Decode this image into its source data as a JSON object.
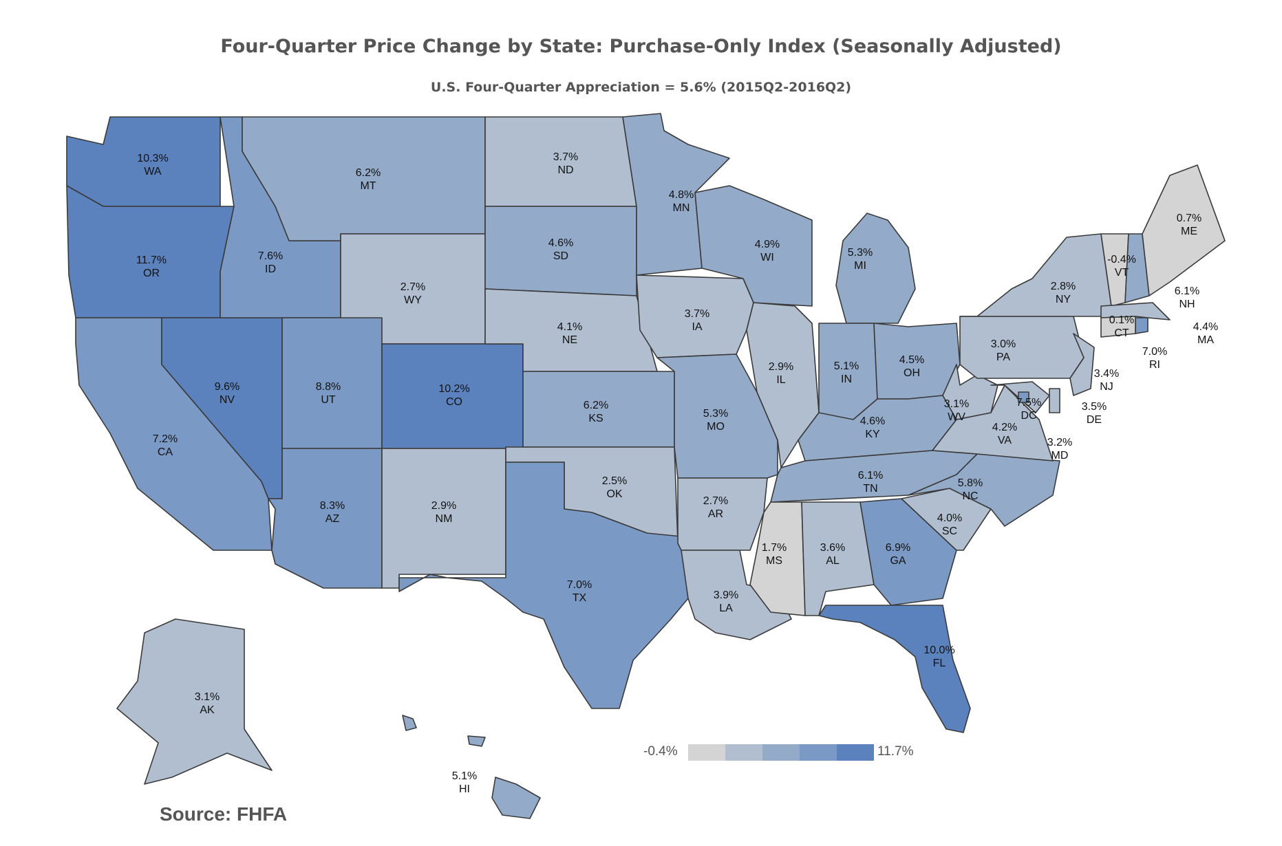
{
  "title": "Four-Quarter Price Change by State: Purchase-Only Index (Seasonally Adjusted)",
  "subtitle": "U.S. Four-Quarter Appreciation = 5.6% (2015Q2-2016Q2)",
  "source": "Source:  FHFA",
  "colors": {
    "bin1": "#d4d4d4",
    "bin2": "#b0bed0",
    "bin3": "#93aac9",
    "bin4": "#7a99c4",
    "bin5": "#5b82bc",
    "bin6": "#3e68ad",
    "border": "#3a3a3a"
  },
  "legend": {
    "min": "-0.4%",
    "max": "11.7%",
    "swatches": [
      "#d4d4d4",
      "#b0bed0",
      "#93aac9",
      "#7a99c4",
      "#5b82bc"
    ]
  },
  "chart_data": {
    "type": "choropleth",
    "range": [
      -0.4,
      11.7
    ],
    "states": [
      {
        "abbr": "WA",
        "label": "10.3%",
        "value": 10.3,
        "bin": "bin5"
      },
      {
        "abbr": "OR",
        "label": "11.7%",
        "value": 11.7,
        "bin": "bin5"
      },
      {
        "abbr": "CA",
        "label": "7.2%",
        "value": 7.2,
        "bin": "bin4"
      },
      {
        "abbr": "NV",
        "label": "9.6%",
        "value": 9.6,
        "bin": "bin5"
      },
      {
        "abbr": "ID",
        "label": "7.6%",
        "value": 7.6,
        "bin": "bin4"
      },
      {
        "abbr": "MT",
        "label": "6.2%",
        "value": 6.2,
        "bin": "bin3"
      },
      {
        "abbr": "WY",
        "label": "2.7%",
        "value": 2.7,
        "bin": "bin2"
      },
      {
        "abbr": "UT",
        "label": "8.8%",
        "value": 8.8,
        "bin": "bin4"
      },
      {
        "abbr": "AZ",
        "label": "8.3%",
        "value": 8.3,
        "bin": "bin4"
      },
      {
        "abbr": "CO",
        "label": "10.2%",
        "value": 10.2,
        "bin": "bin5"
      },
      {
        "abbr": "NM",
        "label": "2.9%",
        "value": 2.9,
        "bin": "bin2"
      },
      {
        "abbr": "ND",
        "label": "3.7%",
        "value": 3.7,
        "bin": "bin2"
      },
      {
        "abbr": "SD",
        "label": "4.6%",
        "value": 4.6,
        "bin": "bin3"
      },
      {
        "abbr": "NE",
        "label": "4.1%",
        "value": 4.1,
        "bin": "bin2"
      },
      {
        "abbr": "KS",
        "label": "6.2%",
        "value": 6.2,
        "bin": "bin3"
      },
      {
        "abbr": "OK",
        "label": "2.5%",
        "value": 2.5,
        "bin": "bin2"
      },
      {
        "abbr": "TX",
        "label": "7.0%",
        "value": 7.0,
        "bin": "bin4"
      },
      {
        "abbr": "MN",
        "label": "4.8%",
        "value": 4.8,
        "bin": "bin3"
      },
      {
        "abbr": "IA",
        "label": "3.7%",
        "value": 3.7,
        "bin": "bin2"
      },
      {
        "abbr": "MO",
        "label": "5.3%",
        "value": 5.3,
        "bin": "bin3"
      },
      {
        "abbr": "AR",
        "label": "2.7%",
        "value": 2.7,
        "bin": "bin2"
      },
      {
        "abbr": "LA",
        "label": "3.9%",
        "value": 3.9,
        "bin": "bin2"
      },
      {
        "abbr": "WI",
        "label": "4.9%",
        "value": 4.9,
        "bin": "bin3"
      },
      {
        "abbr": "IL",
        "label": "2.9%",
        "value": 2.9,
        "bin": "bin2"
      },
      {
        "abbr": "MI",
        "label": "5.3%",
        "value": 5.3,
        "bin": "bin3"
      },
      {
        "abbr": "IN",
        "label": "5.1%",
        "value": 5.1,
        "bin": "bin3"
      },
      {
        "abbr": "OH",
        "label": "4.5%",
        "value": 4.5,
        "bin": "bin3"
      },
      {
        "abbr": "KY",
        "label": "4.6%",
        "value": 4.6,
        "bin": "bin3"
      },
      {
        "abbr": "TN",
        "label": "6.1%",
        "value": 6.1,
        "bin": "bin3"
      },
      {
        "abbr": "MS",
        "label": "1.7%",
        "value": 1.7,
        "bin": "bin1"
      },
      {
        "abbr": "AL",
        "label": "3.6%",
        "value": 3.6,
        "bin": "bin2"
      },
      {
        "abbr": "GA",
        "label": "6.9%",
        "value": 6.9,
        "bin": "bin4"
      },
      {
        "abbr": "FL",
        "label": "10.0%",
        "value": 10.0,
        "bin": "bin5"
      },
      {
        "abbr": "SC",
        "label": "4.0%",
        "value": 4.0,
        "bin": "bin2"
      },
      {
        "abbr": "NC",
        "label": "5.8%",
        "value": 5.8,
        "bin": "bin3"
      },
      {
        "abbr": "VA",
        "label": "4.2%",
        "value": 4.2,
        "bin": "bin2"
      },
      {
        "abbr": "WV",
        "label": "3.1%",
        "value": 3.1,
        "bin": "bin2"
      },
      {
        "abbr": "PA",
        "label": "3.0%",
        "value": 3.0,
        "bin": "bin2"
      },
      {
        "abbr": "NY",
        "label": "2.8%",
        "value": 2.8,
        "bin": "bin2"
      },
      {
        "abbr": "VT",
        "label": "-0.4%",
        "value": -0.4,
        "bin": "bin1"
      },
      {
        "abbr": "NH",
        "label": "6.1%",
        "value": 6.1,
        "bin": "bin3"
      },
      {
        "abbr": "ME",
        "label": "0.7%",
        "value": 0.7,
        "bin": "bin1"
      },
      {
        "abbr": "MA",
        "label": "4.4%",
        "value": 4.4,
        "bin": "bin2"
      },
      {
        "abbr": "RI",
        "label": "7.0%",
        "value": 7.0,
        "bin": "bin4"
      },
      {
        "abbr": "CT",
        "label": "0.1%",
        "value": 0.1,
        "bin": "bin1"
      },
      {
        "abbr": "NJ",
        "label": "3.4%",
        "value": 3.4,
        "bin": "bin2"
      },
      {
        "abbr": "DE",
        "label": "3.5%",
        "value": 3.5,
        "bin": "bin2"
      },
      {
        "abbr": "MD",
        "label": "3.2%",
        "value": 3.2,
        "bin": "bin2"
      },
      {
        "abbr": "DC",
        "label": "7.5%",
        "value": 7.5,
        "bin": "bin4"
      },
      {
        "abbr": "AK",
        "label": "3.1%",
        "value": 3.1,
        "bin": "bin2"
      },
      {
        "abbr": "HI",
        "label": "5.1%",
        "value": 5.1,
        "bin": "bin3"
      }
    ]
  }
}
